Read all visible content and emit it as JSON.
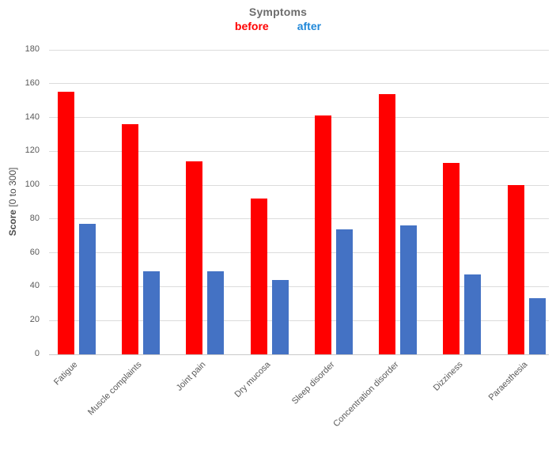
{
  "title": "Symptoms",
  "legend": {
    "before_label": "before",
    "after_label": "after"
  },
  "y_axis": {
    "label_bold": "Score",
    "label_rest": " [0 to 300]"
  },
  "colors": {
    "before_bar": "#ff0000",
    "after_bar": "#4472c4",
    "legend_before_text": "#ff0000",
    "legend_after_text": "#1f87d8",
    "title_text": "#6d6d6d",
    "axis_text": "#595959",
    "gridline": "#dcdcdc"
  },
  "chart_data": {
    "type": "bar",
    "title": "Symptoms",
    "categories": [
      "Fatigue",
      "Muscle complaints",
      "Joint pain",
      "Dry mucosa",
      "Sleep disorder",
      "Concentration disorder",
      "Dizziness",
      "Paraesthesia"
    ],
    "series": [
      {
        "name": "before",
        "color": "#ff0000",
        "values": [
          155,
          136,
          114,
          92,
          141,
          154,
          113,
          100
        ]
      },
      {
        "name": "after",
        "color": "#4472c4",
        "values": [
          77,
          49,
          49,
          44,
          74,
          76,
          47,
          33
        ]
      }
    ],
    "xlabel": "",
    "ylabel": "Score [0 to 300]",
    "ylim": [
      0,
      180
    ],
    "ytick_step": 20,
    "grid": true,
    "legend_position": "top",
    "x_label_rotation_deg": 45
  }
}
